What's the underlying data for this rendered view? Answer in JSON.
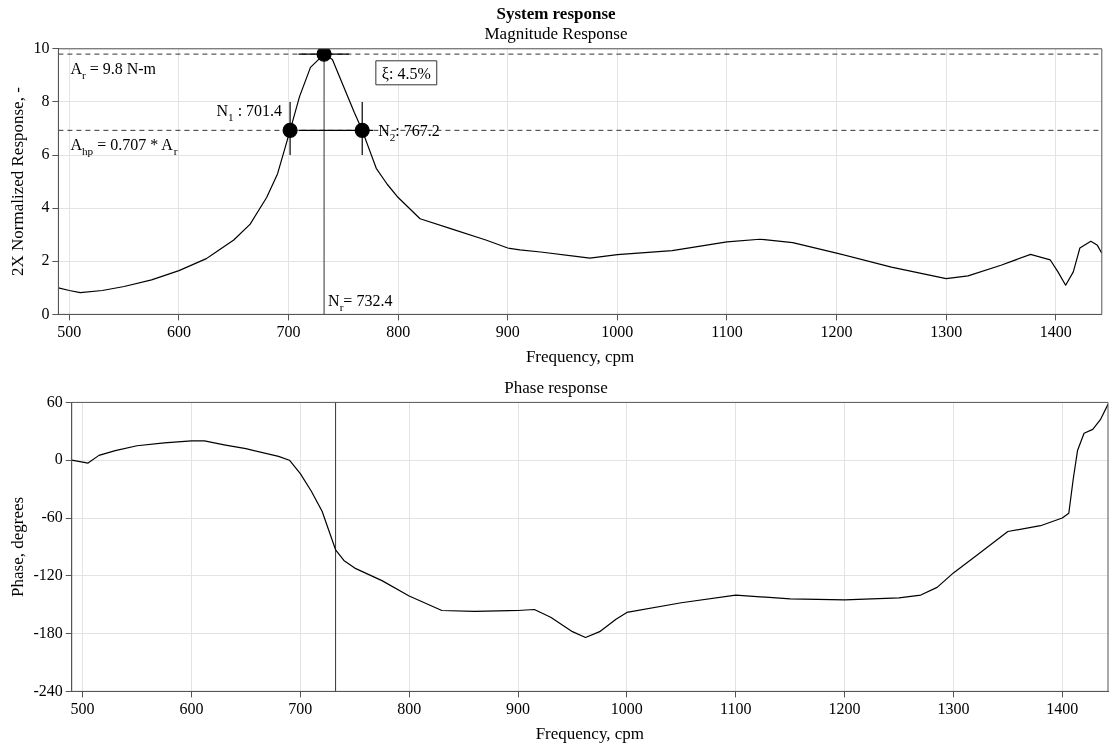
{
  "chart_data": [
    {
      "type": "line",
      "title": "System response",
      "subtitle": "Magnitude Response",
      "xlabel": "Frequency, cpm",
      "ylabel": "2X Normalized Response, -",
      "xlim": [
        490,
        1442
      ],
      "xticks": [
        500,
        600,
        700,
        800,
        900,
        1000,
        1100,
        1200,
        1300,
        1400
      ],
      "ylim": [
        0,
        10
      ],
      "yticks": [
        0,
        2,
        4,
        6,
        8,
        10
      ],
      "grid": true,
      "legend": false,
      "series": [
        {
          "color": "#000000",
          "marker": "none",
          "x": [
            490,
            500,
            510,
            530,
            550,
            575,
            600,
            625,
            650,
            665,
            680,
            690,
            701.4,
            710,
            720,
            732.4,
            740,
            750,
            760,
            767.2,
            780,
            790,
            800,
            820,
            850,
            880,
            900,
            911,
            930,
            975,
            1000,
            1050,
            1100,
            1130,
            1160,
            1200,
            1250,
            1300,
            1320,
            1350,
            1377,
            1395,
            1402,
            1409,
            1416,
            1422,
            1432,
            1438,
            1442
          ],
          "values": [
            1.0,
            0.9,
            0.82,
            0.9,
            1.05,
            1.3,
            1.65,
            2.1,
            2.8,
            3.4,
            4.4,
            5.3,
            6.93,
            8.2,
            9.3,
            9.8,
            9.6,
            8.6,
            7.6,
            6.93,
            5.5,
            4.9,
            4.4,
            3.6,
            3.2,
            2.8,
            2.5,
            2.43,
            2.35,
            2.12,
            2.25,
            2.4,
            2.73,
            2.83,
            2.7,
            2.31,
            1.78,
            1.35,
            1.45,
            1.85,
            2.26,
            2.05,
            1.6,
            1.1,
            1.6,
            2.5,
            2.75,
            2.6,
            2.3
          ]
        },
        {
          "type": "scatter",
          "color": "#000000",
          "marker": "circle",
          "x": [
            701.4,
            732.4,
            767.2
          ],
          "values": [
            6.93,
            9.8,
            6.93
          ],
          "errors": [
            [
              6,
              8
            ],
            null,
            [
              6,
              8
            ]
          ],
          "xerrors": [
            null,
            [
              709,
              755
            ],
            [
              709,
              777
            ]
          ]
        }
      ],
      "ref_lines": [
        {
          "axis": "y",
          "value": 9.8,
          "label": "A$_{r}$ = 9.8 N-m",
          "line_style": "dashed"
        },
        {
          "axis": "y",
          "value": 6.93,
          "line_style": "dashed"
        },
        {
          "axis": "x",
          "value": 732.4,
          "label": "N$_{r}$= 732.4",
          "line_style": "solid"
        }
      ],
      "annotations": [
        {
          "text": "A$_{hp}$ = 0.707 * A$_{r}$",
          "y": 6.93
        },
        {
          "text": "N$_{1}$ : 701.4",
          "x": 701.4,
          "y": 6.93
        },
        {
          "text": "N$_{2}$: 767.2",
          "x": 767.2,
          "y": 6.93
        },
        "ξ: 4.5%"
      ]
    },
    {
      "type": "line",
      "title": "Phase response",
      "xlabel": "Frequency, cpm",
      "ylabel": "Phase, degrees",
      "xlim": [
        490,
        1442
      ],
      "xticks": [
        500,
        600,
        700,
        800,
        900,
        1000,
        1100,
        1200,
        1300,
        1400
      ],
      "ylim": [
        -240,
        60
      ],
      "yticks": [
        -240,
        -180,
        -120,
        -60,
        0,
        60
      ],
      "grid": true,
      "legend": false,
      "series": [
        {
          "color": "#000000",
          "marker": "none",
          "x": [
            490,
            500,
            505,
            515,
            530,
            550,
            575,
            600,
            612,
            630,
            650,
            680,
            690,
            700,
            710,
            720,
            732.4,
            740,
            750,
            775,
            800,
            830,
            860,
            900,
            915,
            930,
            950,
            962,
            975,
            990,
            1000,
            1050,
            1100,
            1150,
            1200,
            1250,
            1270,
            1285,
            1300,
            1320,
            1350,
            1380,
            1400,
            1406,
            1410,
            1414,
            1420,
            1428,
            1435,
            1442
          ],
          "values": [
            0,
            -2,
            -3,
            5,
            10,
            15,
            18,
            20,
            20,
            16,
            12,
            4,
            0,
            -14,
            -32,
            -53,
            -93,
            -104,
            -112,
            -125,
            -141,
            -156,
            -157,
            -156,
            -155,
            -163,
            -178,
            -184,
            -178,
            -165,
            -158,
            -148,
            -140,
            -144,
            -145,
            -143,
            -140,
            -132,
            -117,
            -100,
            -74,
            -68,
            -60,
            -55,
            -20,
            10,
            28,
            32,
            42,
            58
          ]
        }
      ],
      "ref_lines": [
        {
          "axis": "x",
          "value": 732.4,
          "line_style": "solid"
        }
      ]
    }
  ]
}
